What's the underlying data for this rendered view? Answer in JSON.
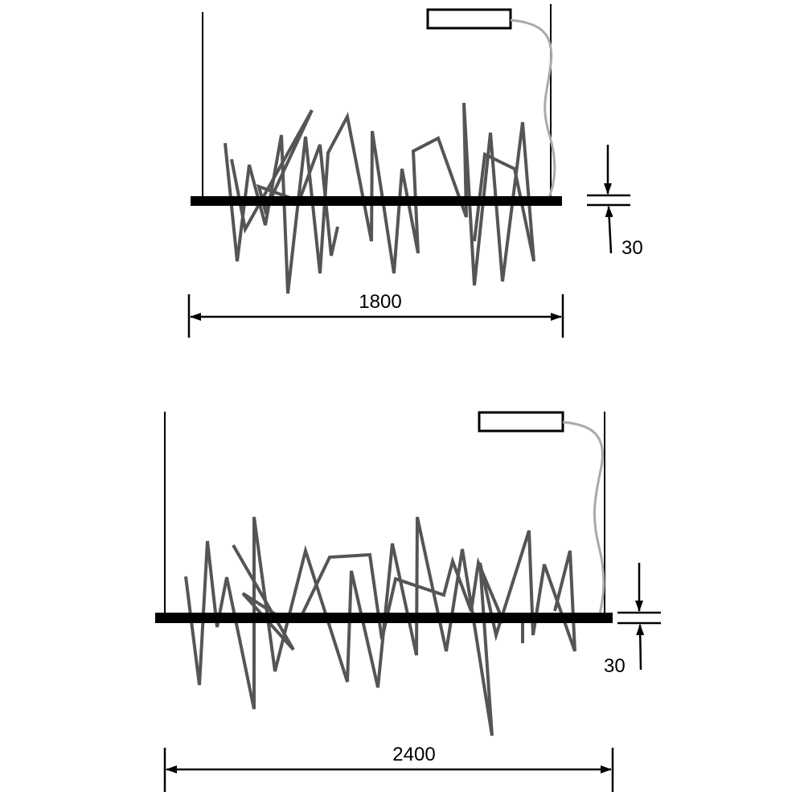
{
  "drawings": [
    {
      "width_label": "1800",
      "thickness_label": "30"
    },
    {
      "width_label": "2400",
      "thickness_label": "30"
    }
  ]
}
